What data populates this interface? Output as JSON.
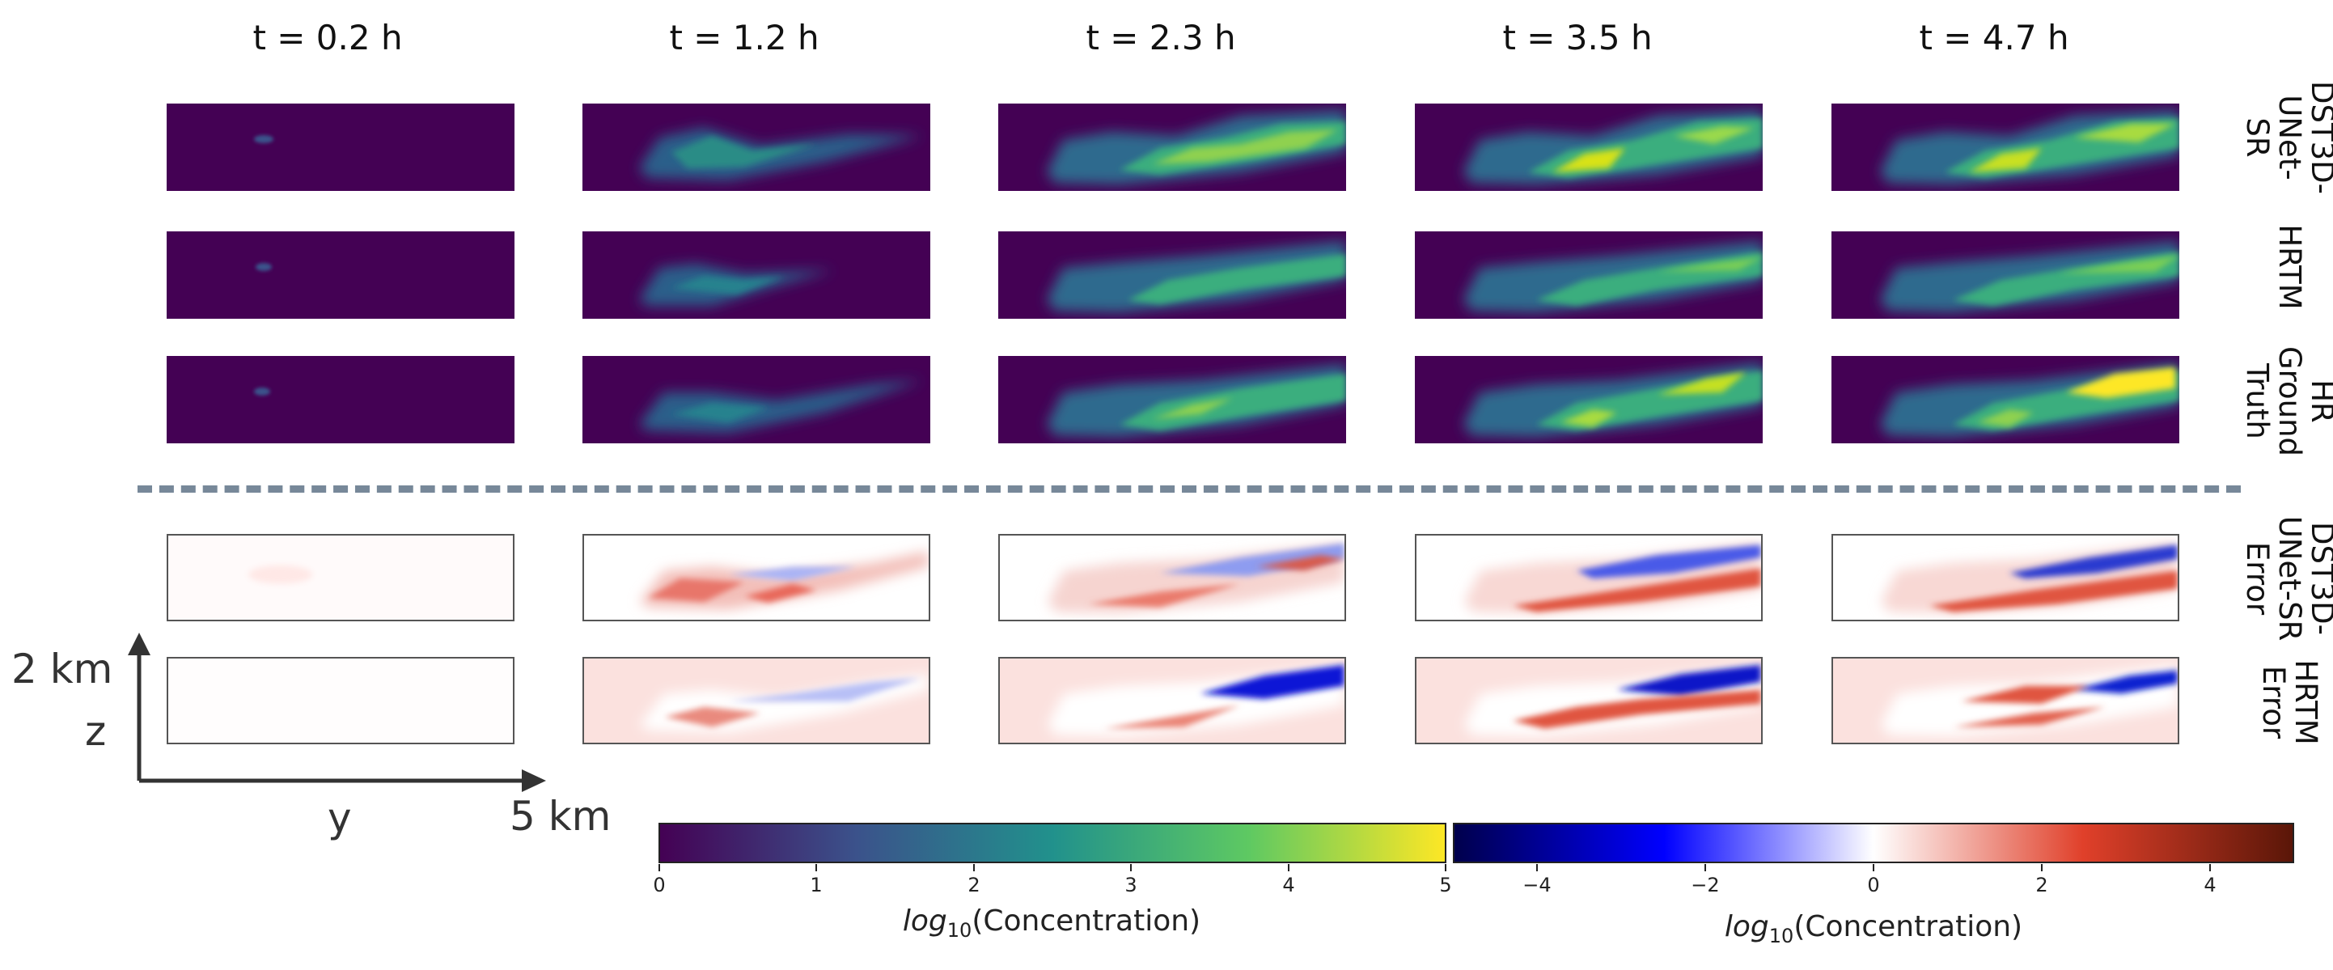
{
  "column_titles": [
    "t = 0.2 h",
    "t = 1.2 h",
    "t = 2.3 h",
    "t = 3.5 h",
    "t = 4.7 h"
  ],
  "row_labels": {
    "dst3d": [
      "DST3D-",
      "UNet-",
      "SR"
    ],
    "hrtm": [
      "HRTM"
    ],
    "hr_truth": [
      "HR",
      "Ground",
      "Truth"
    ],
    "dst3d_error": [
      "DST3D-",
      "UNet-SR",
      "Error"
    ],
    "hrtm_error": [
      "HRTM",
      "Error"
    ]
  },
  "axes": {
    "z_label": "z",
    "y_label": "y",
    "z_extent": "2 km",
    "y_extent": "5 km"
  },
  "colorbar_concentration": {
    "ticks": [
      "0",
      "1",
      "2",
      "3",
      "4",
      "5"
    ],
    "label_prefix": "log",
    "label_sub": "10",
    "label_suffix": "(Concentration)",
    "colors": [
      "#440154",
      "#3b528b",
      "#21918c",
      "#5ec962",
      "#fde725"
    ]
  },
  "colorbar_error": {
    "ticks": [
      "−4",
      "−2",
      "0",
      "2",
      "4"
    ],
    "label_prefix": "log",
    "label_sub": "10",
    "label_suffix": "(Concentration)",
    "colors": [
      "#00004c",
      "#0000ff",
      "#ffffff",
      "#e0402a",
      "#5a1608"
    ]
  }
}
